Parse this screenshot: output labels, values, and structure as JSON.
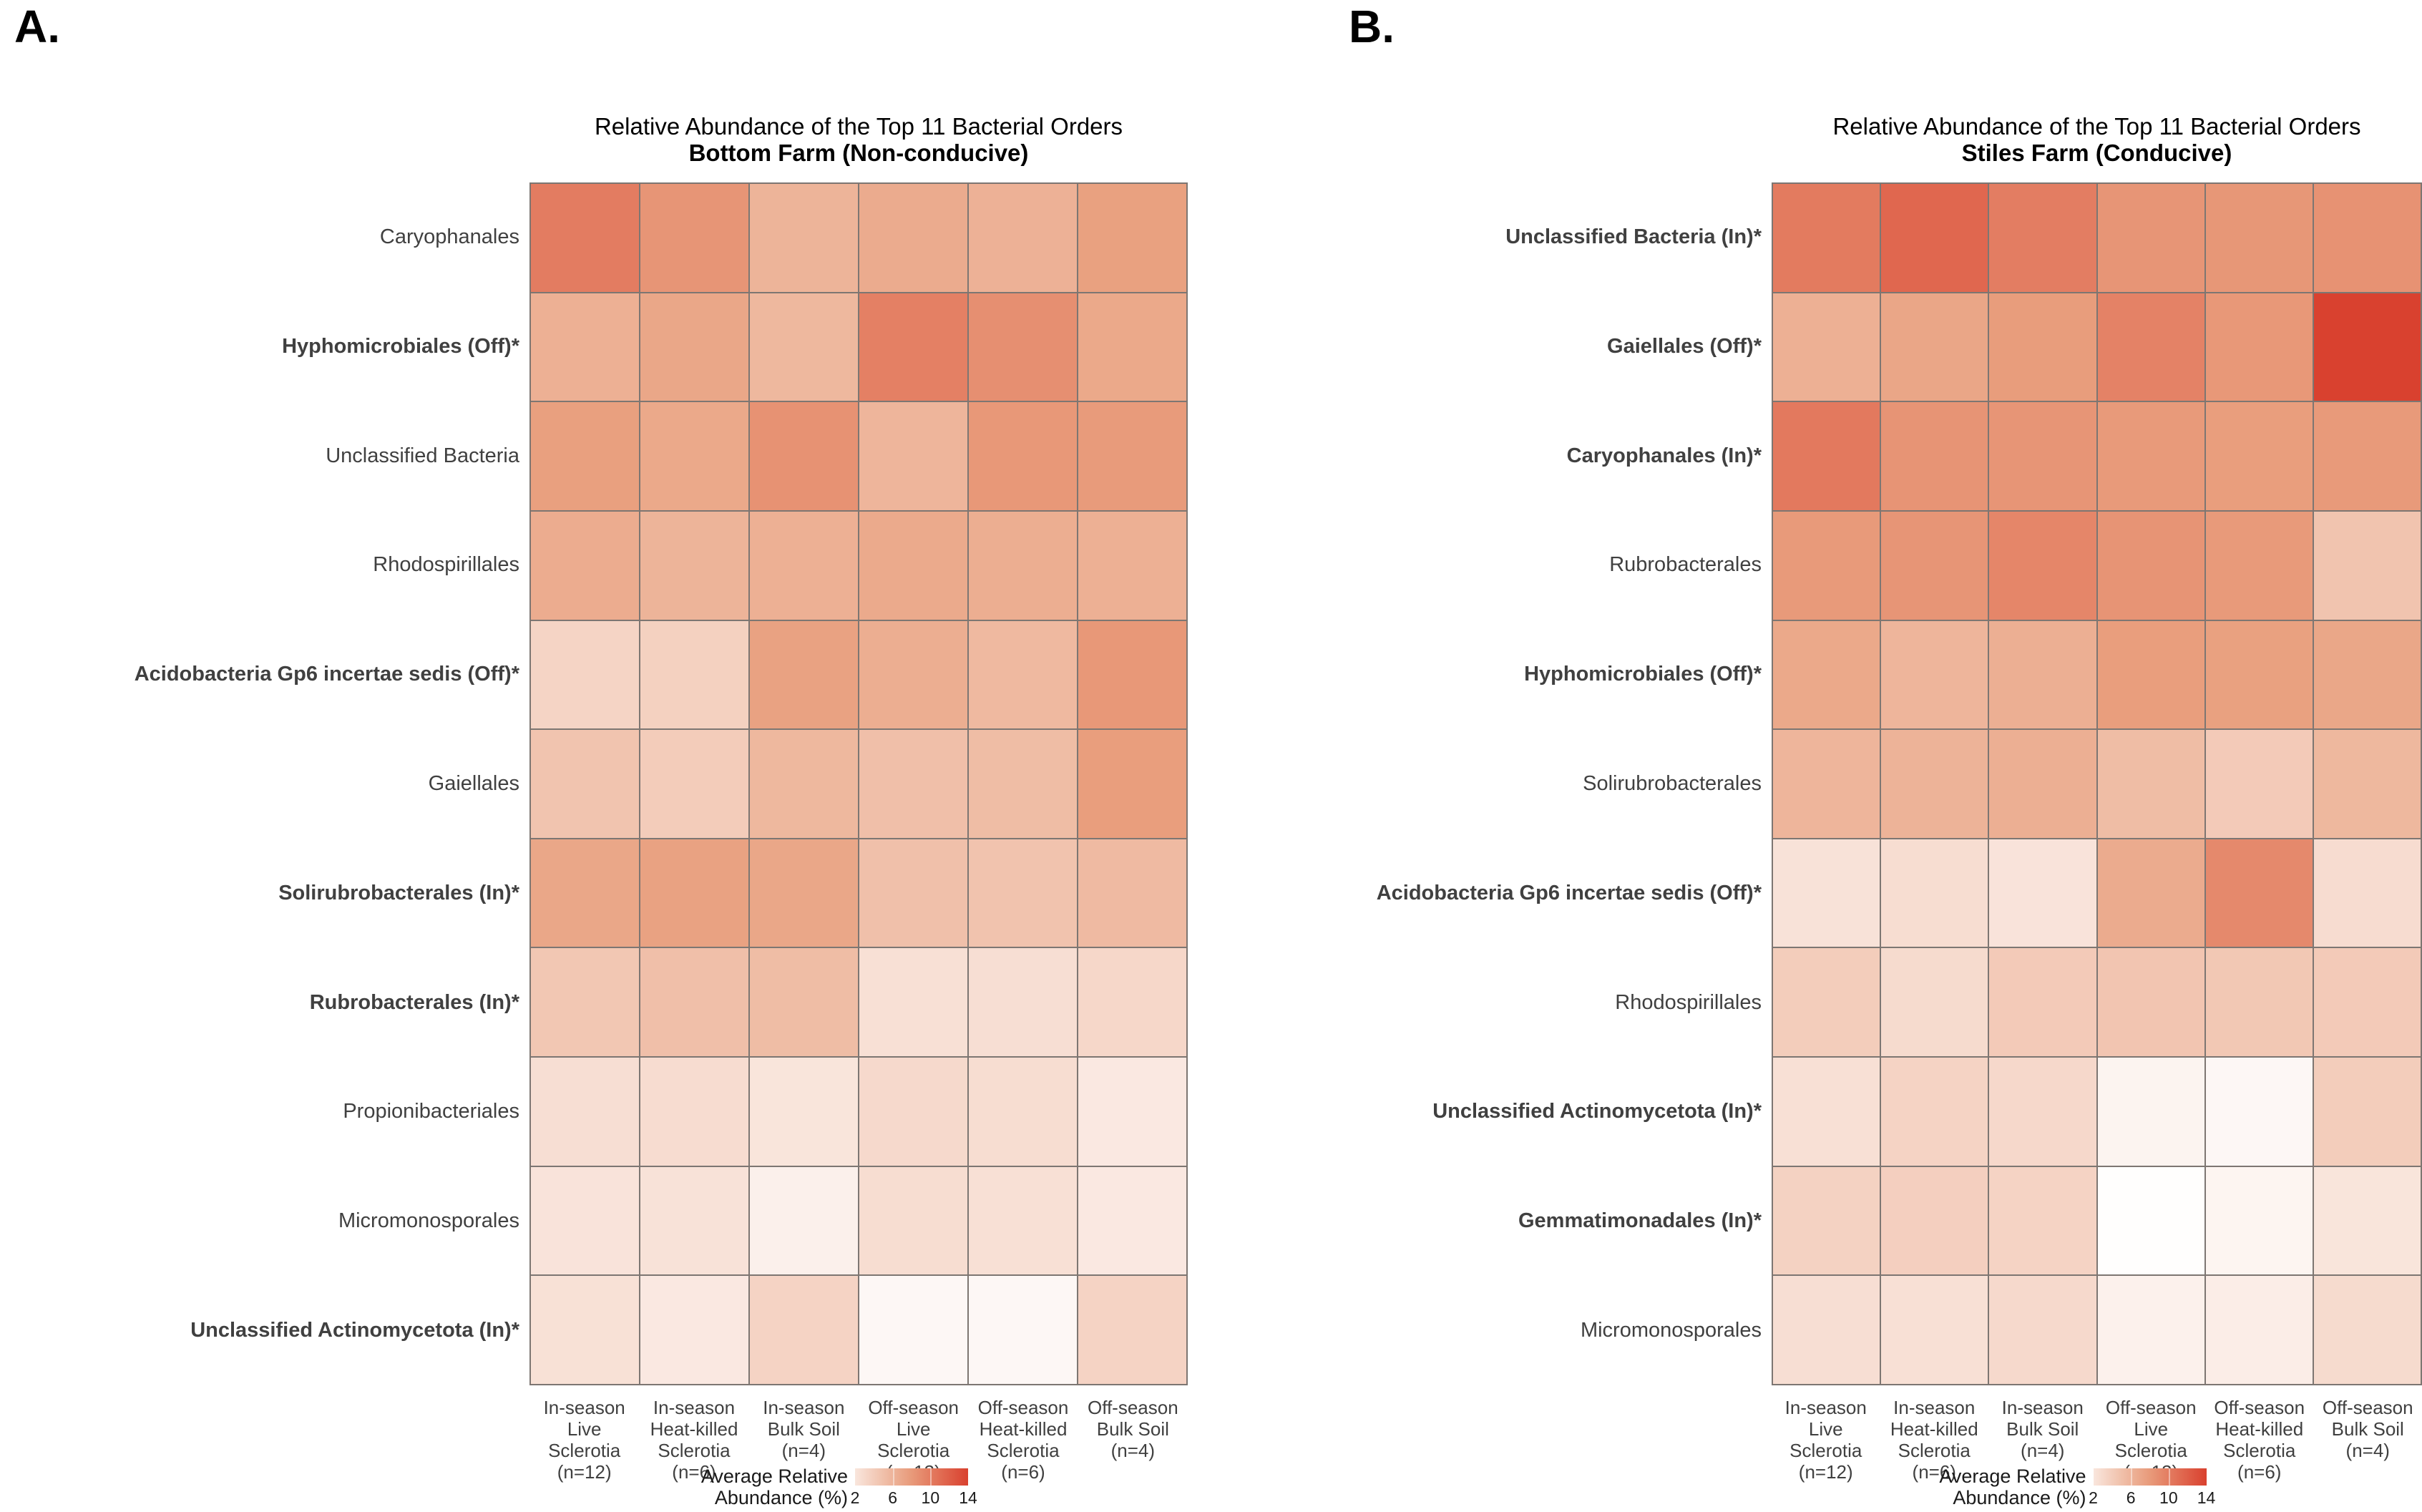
{
  "figure": {
    "description": "Two-panel heatmap figure of average relative abundance of the top 11 bacterial orders",
    "legend_label": "Average Relative\nAbundance (%)",
    "legend_ticks": [
      "2",
      "6",
      "10",
      "14"
    ]
  },
  "colors": {
    "scale_stops": [
      [
        0,
        "#FFFFFF"
      ],
      [
        7.5,
        "#E9A180"
      ],
      [
        15,
        "#D73222"
      ]
    ],
    "grid_line": "#7D7672",
    "label_text": "#404040",
    "title_text": "#000000"
  },
  "chart_data": [
    {
      "type": "heatmap",
      "panel_label": "A.",
      "title": "Relative Abundance of the Top 11 Bacterial Orders",
      "subtitle": "Bottom Farm (Non-conducive)",
      "legend_position": "bottom",
      "value_unit": "percent",
      "scale_range": [
        0,
        15
      ],
      "columns": [
        "In-season\nLive Sclerotia\n(n=12)",
        "In-season\nHeat-killed\nSclerotia\n(n=6)",
        "In-season\nBulk Soil\n(n=4)",
        "Off-season\nLive Sclerotia\n(n=12)",
        "Off-season\nHeat-killed\nSclerotia\n(n=6)",
        "Off-season\nBulk Soil\n(n=4)"
      ],
      "rows": [
        "Caryophanales",
        "Hyphomicrobiales (Off)*",
        "Unclassified Bacteria",
        "Rhodospirillales",
        "Acidobacteria Gp6 incertae sedis (Off)*",
        "Gaiellales",
        "Solirubrobacterales (In)*",
        "Rubrobacterales (In)*",
        "Propionibacteriales",
        "Micromonosporales",
        "Unclassified Actinomycetota (In)*"
      ],
      "rows_bold": [
        false,
        true,
        false,
        false,
        true,
        false,
        true,
        true,
        false,
        false,
        true
      ],
      "values": [
        [
          10.0,
          8.3,
          6.0,
          6.7,
          6.2,
          7.5
        ],
        [
          6.3,
          7.0,
          5.7,
          9.7,
          8.7,
          6.9
        ],
        [
          7.6,
          6.9,
          8.5,
          5.9,
          8.1,
          7.9
        ],
        [
          6.6,
          6.0,
          6.3,
          6.8,
          6.5,
          6.3
        ],
        [
          3.4,
          3.7,
          7.4,
          6.5,
          5.6,
          8.1
        ],
        [
          4.7,
          4.1,
          5.7,
          5.1,
          5.3,
          7.7
        ],
        [
          7.0,
          7.4,
          7.0,
          5.0,
          4.8,
          5.5
        ],
        [
          4.5,
          5.1,
          5.3,
          2.5,
          2.6,
          3.2
        ],
        [
          2.6,
          2.8,
          2.1,
          3.0,
          2.7,
          1.8
        ],
        [
          2.2,
          2.3,
          1.2,
          2.7,
          2.5,
          1.8
        ],
        [
          2.4,
          1.8,
          3.5,
          0.6,
          0.6,
          3.5
        ]
      ]
    },
    {
      "type": "heatmap",
      "panel_label": "B.",
      "title": "Relative Abundance of the Top 11 Bacterial Orders",
      "subtitle": "Stiles Farm (Conducive)",
      "legend_position": "bottom",
      "value_unit": "percent",
      "scale_range": [
        0,
        15
      ],
      "columns": [
        "In-season\nLive Sclerotia\n(n=12)",
        "In-season\nHeat-killed\nSclerotia\n(n=6)",
        "In-season\nBulk Soil\n(n=4)",
        "Off-season\nLive Sclerotia\n(n=12)",
        "Off-season\nHeat-killed\nSclerotia\n(n=6)",
        "Off-season\nBulk Soil\n(n=4)"
      ],
      "rows": [
        "Unclassified Bacteria (In)*",
        "Gaiellales (Off)*",
        "Caryophanales (In)*",
        "Rubrobacterales",
        "Hyphomicrobiales (Off)*",
        "Solirubrobacterales",
        "Acidobacteria Gp6 incertae sedis (Off)*",
        "Rhodospirillales",
        "Unclassified Actinomycetota (In)*",
        "Gemmatimonadales (In)*",
        "Micromonosporales"
      ],
      "rows_bold": [
        true,
        true,
        true,
        false,
        true,
        false,
        true,
        false,
        true,
        true,
        false
      ],
      "values": [
        [
          10.1,
          11.4,
          9.9,
          8.3,
          8.2,
          8.5
        ],
        [
          6.3,
          7.1,
          7.8,
          9.6,
          8.1,
          14.0
        ],
        [
          10.2,
          8.4,
          8.3,
          8.0,
          7.7,
          8.0
        ],
        [
          8.0,
          8.3,
          9.3,
          8.4,
          8.0,
          4.7
        ],
        [
          6.9,
          5.9,
          6.4,
          7.7,
          7.5,
          7.0
        ],
        [
          5.9,
          6.1,
          6.4,
          5.3,
          4.2,
          5.7
        ],
        [
          2.3,
          2.7,
          2.2,
          6.7,
          9.1,
          2.8
        ],
        [
          4.0,
          2.9,
          4.2,
          4.6,
          4.4,
          4.2
        ],
        [
          2.5,
          3.5,
          3.1,
          0.9,
          0.6,
          4.0
        ],
        [
          3.6,
          3.8,
          3.5,
          0.1,
          0.8,
          2.1
        ],
        [
          2.6,
          2.5,
          3.0,
          1.1,
          1.4,
          2.9
        ]
      ]
    }
  ]
}
